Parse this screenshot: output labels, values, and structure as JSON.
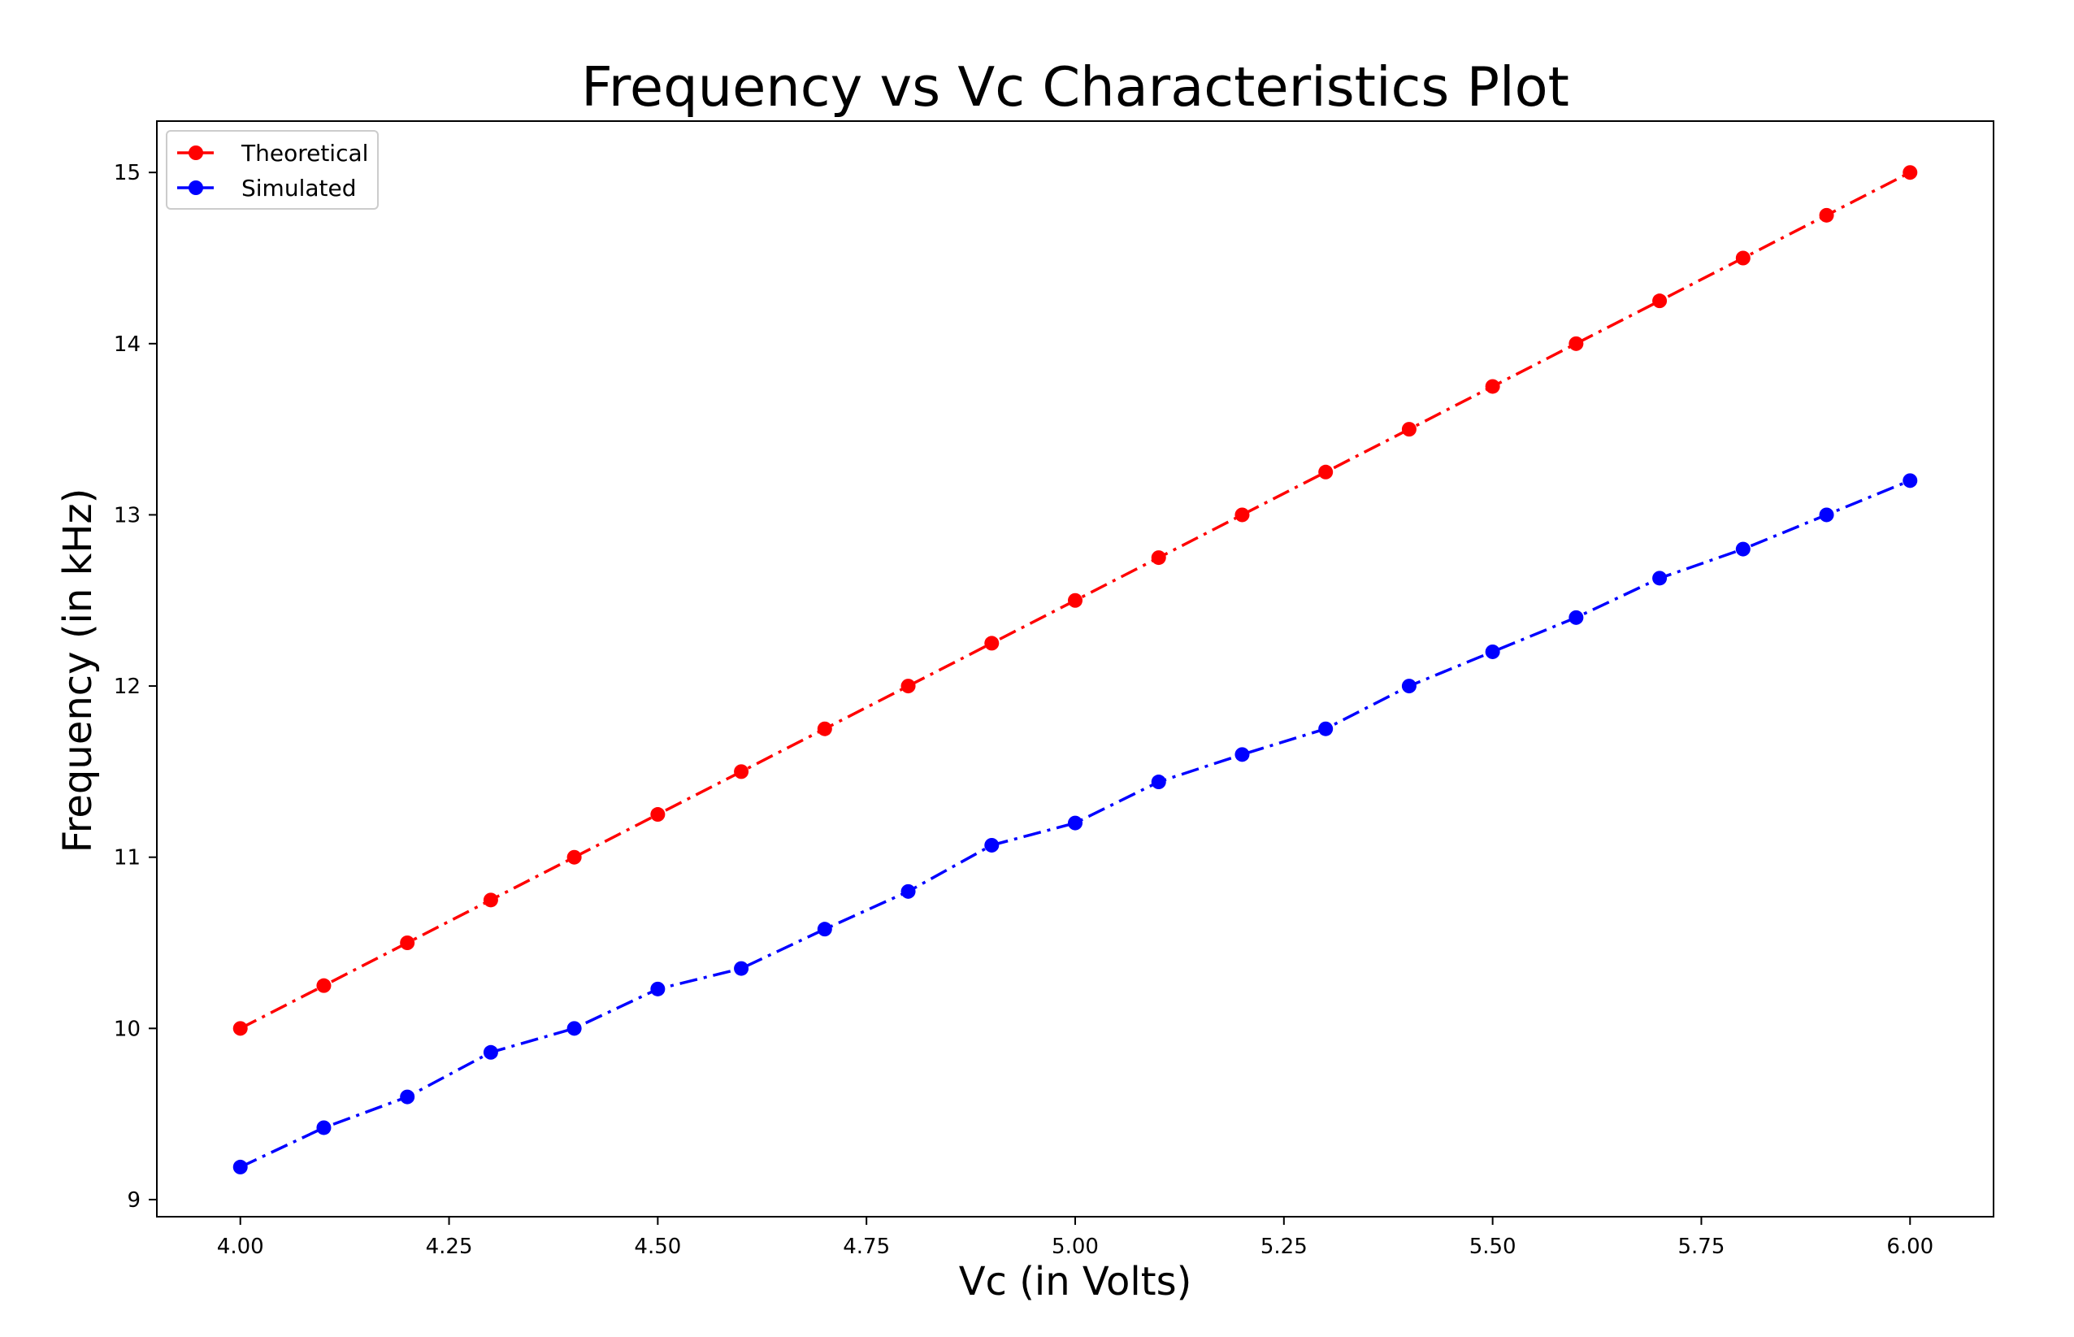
{
  "chart_data": {
    "type": "line",
    "title": "Frequency vs Vc Characteristics Plot",
    "xlabel": "Vc (in Volts)",
    "ylabel": "Frequency (in kHz)",
    "xlim": [
      3.9,
      6.1
    ],
    "ylim": [
      8.9,
      15.3
    ],
    "grid": false,
    "legend_position": "top-left",
    "x": [
      4.0,
      4.1,
      4.2,
      4.3,
      4.4,
      4.5,
      4.6,
      4.7,
      4.8,
      4.9,
      5.0,
      5.1,
      5.2,
      5.3,
      5.4,
      5.5,
      5.6,
      5.7,
      5.8,
      5.9,
      6.0
    ],
    "xticks": [
      "4.00",
      "4.25",
      "4.50",
      "4.75",
      "5.00",
      "5.25",
      "5.50",
      "5.75",
      "6.00"
    ],
    "yticks": [
      "9",
      "10",
      "11",
      "12",
      "13",
      "14",
      "15"
    ],
    "series": [
      {
        "name": "Theoretical",
        "color": "#ff0000",
        "line_style": "dash-dot",
        "marker": "circle",
        "values": [
          10.0,
          10.25,
          10.5,
          10.75,
          11.0,
          11.25,
          11.5,
          11.75,
          12.0,
          12.25,
          12.5,
          12.75,
          13.0,
          13.25,
          13.5,
          13.75,
          14.0,
          14.25,
          14.5,
          14.75,
          15.0
        ]
      },
      {
        "name": "Simulated",
        "color": "#0000ff",
        "line_style": "dash-dot",
        "marker": "circle",
        "values": [
          9.19,
          9.42,
          9.6,
          9.86,
          10.0,
          10.23,
          10.35,
          10.58,
          10.8,
          11.07,
          11.2,
          11.44,
          11.6,
          11.75,
          12.0,
          12.2,
          12.4,
          12.63,
          12.8,
          13.0,
          13.2
        ]
      }
    ]
  }
}
